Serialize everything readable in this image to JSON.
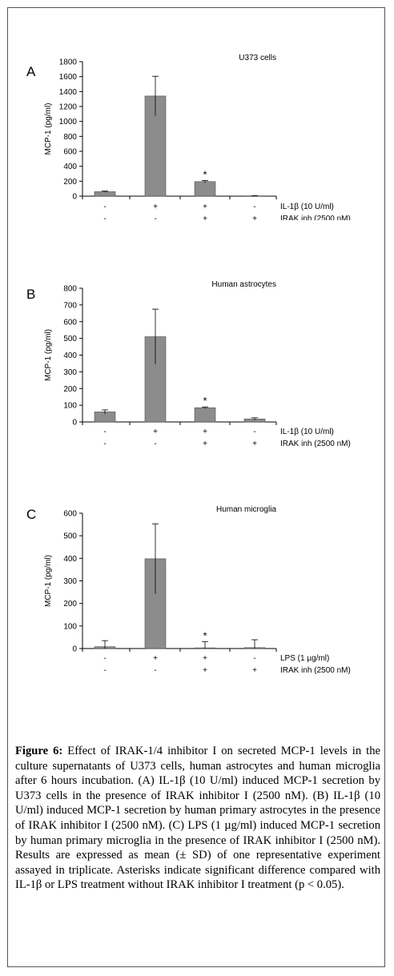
{
  "figure": {
    "caption_label": "Figure 6:",
    "caption_text": " Effect of IRAK-1/4 inhibitor I on secreted MCP-1 levels in the culture supernatants of U373 cells, human astrocytes and human microglia after 6 hours incubation. (A) IL-1β (10 U/ml) induced MCP-1 secretion by U373 cells in the presence of IRAK inhibitor I (2500 nM). (B) IL-1β (10 U/ml) induced MCP-1 secretion by human primary astrocytes in the presence of IRAK inhibitor I (2500 nM). (C) LPS (1 µg/ml) induced MCP-1 secretion by human primary microglia in the presence of IRAK inhibitor I (2500 nM). Results are expressed as mean (± SD) of one representative experiment assayed in triplicate. Asterisks indicate significant difference compared with IL-1β or LPS treatment without IRAK inhibitor I treatment (p < 0.05)."
  },
  "colors": {
    "bar": "#8c8c8c",
    "bar_stroke": "#4d4d4d",
    "axis": "#000000"
  },
  "chart_data": [
    {
      "type": "bar",
      "panel_letter": "A",
      "title": "U373 cells",
      "ylabel": "MCP-1 (pg/ml)",
      "ylim": [
        0,
        1800
      ],
      "yticks": [
        0,
        200,
        400,
        600,
        800,
        1000,
        1200,
        1400,
        1600,
        1800
      ],
      "values": [
        60,
        1340,
        195,
        5
      ],
      "errors": [
        8,
        265,
        15,
        2
      ],
      "significant": [
        false,
        false,
        true,
        false
      ],
      "treatment_rows": [
        {
          "label": "IL-1β (10 U/ml)",
          "signs": [
            "-",
            "+",
            "+",
            "-"
          ]
        },
        {
          "label": "IRAK inh (2500 nM)",
          "signs": [
            "-",
            "-",
            "+",
            "+"
          ]
        }
      ]
    },
    {
      "type": "bar",
      "panel_letter": "B",
      "title": "Human astrocytes",
      "ylabel": "MCP-1 (pg/ml)",
      "ylim": [
        0,
        800
      ],
      "yticks": [
        0,
        100,
        200,
        300,
        400,
        500,
        600,
        700,
        800
      ],
      "values": [
        60,
        510,
        85,
        18
      ],
      "errors": [
        12,
        165,
        5,
        7
      ],
      "significant": [
        false,
        false,
        true,
        false
      ],
      "treatment_rows": [
        {
          "label": "IL-1β (10 U/ml)",
          "signs": [
            "-",
            "+",
            "+",
            "-"
          ]
        },
        {
          "label": "IRAK inh (2500 nM)",
          "signs": [
            "-",
            "-",
            "+",
            "+"
          ]
        }
      ]
    },
    {
      "type": "bar",
      "panel_letter": "C",
      "title": "Human microglia",
      "ylabel": "MCP-1 (pg/ml)",
      "ylim": [
        0,
        600
      ],
      "yticks": [
        0,
        100,
        200,
        300,
        400,
        500,
        600
      ],
      "values": [
        8,
        398,
        3,
        4
      ],
      "errors": [
        27,
        155,
        28,
        35
      ],
      "significant": [
        false,
        false,
        true,
        false
      ],
      "treatment_rows": [
        {
          "label": "LPS (1 µg/ml)",
          "signs": [
            "-",
            "+",
            "+",
            "-"
          ]
        },
        {
          "label": "IRAK inh (2500 nM)",
          "signs": [
            "-",
            "-",
            "+",
            "+"
          ]
        }
      ]
    }
  ]
}
